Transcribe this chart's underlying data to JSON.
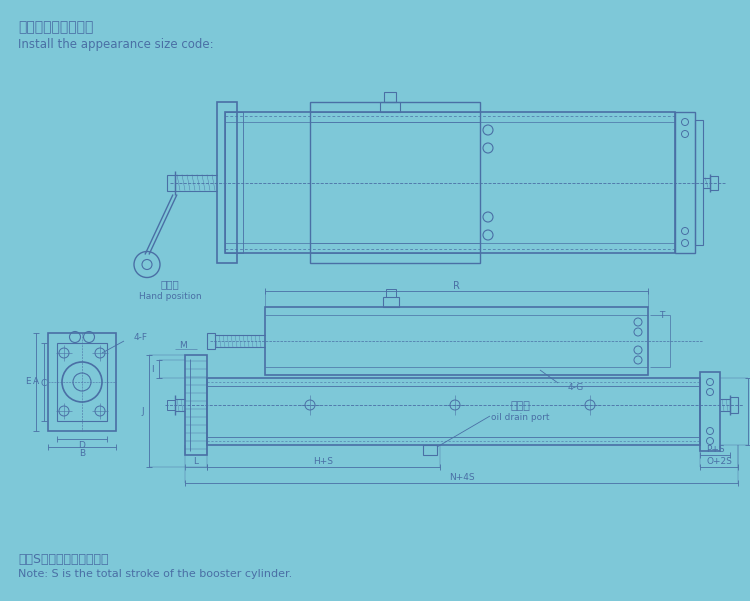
{
  "bg_color": "#7ec8d8",
  "line_color": "#4a6fa5",
  "title_cn": "安装外观尺寸代码：",
  "title_en": "Install the appearance size code:",
  "note_cn": "注：S为增压缸的总行程。",
  "note_en": "Note: S is the total stroke of the booster cylinder.",
  "hand_label_cn": "扳手位",
  "hand_label_en": "Hand position",
  "figsize": [
    7.5,
    6.01
  ],
  "dpi": 100
}
